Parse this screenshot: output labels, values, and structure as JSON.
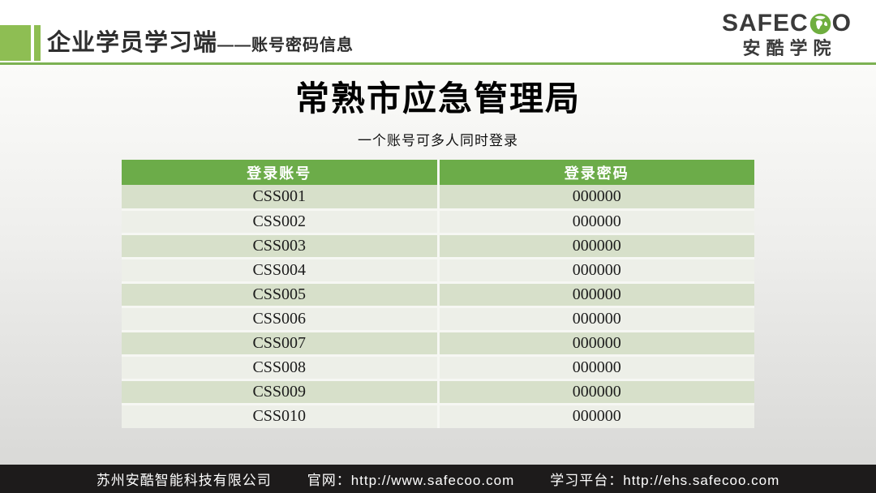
{
  "header": {
    "title_main": "企业学员学习端",
    "title_sub": "——账号密码信息",
    "logo": {
      "brand_prefix": "SAFEC",
      "brand_suffix": "O",
      "globe_icon": "globe-icon",
      "subtitle": "安酷学院"
    }
  },
  "main": {
    "title": "常熟市应急管理局",
    "subtitle": "一个账号可多人同时登录",
    "table": {
      "columns": [
        "登录账号",
        "登录密码"
      ],
      "rows": [
        {
          "account": "CSS001",
          "password": "000000"
        },
        {
          "account": "CSS002",
          "password": "000000"
        },
        {
          "account": "CSS003",
          "password": "000000"
        },
        {
          "account": "CSS004",
          "password": "000000"
        },
        {
          "account": "CSS005",
          "password": "000000"
        },
        {
          "account": "CSS006",
          "password": "000000"
        },
        {
          "account": "CSS007",
          "password": "000000"
        },
        {
          "account": "CSS008",
          "password": "000000"
        },
        {
          "account": "CSS009",
          "password": "000000"
        },
        {
          "account": "CSS010",
          "password": "000000"
        }
      ]
    }
  },
  "footer": {
    "company": "苏州安酷智能科技有限公司",
    "website": "官网：http://www.safecoo.com",
    "platform": "学习平台：http://ehs.safecoo.com"
  },
  "colors": {
    "accent_green": "#8EBE53",
    "divider_green": "#7CB152",
    "table_header_green": "#6CAC49",
    "row_odd": "#D7E0CA",
    "row_even": "#EDEFE8",
    "footer_background": "#1D1B1B"
  }
}
